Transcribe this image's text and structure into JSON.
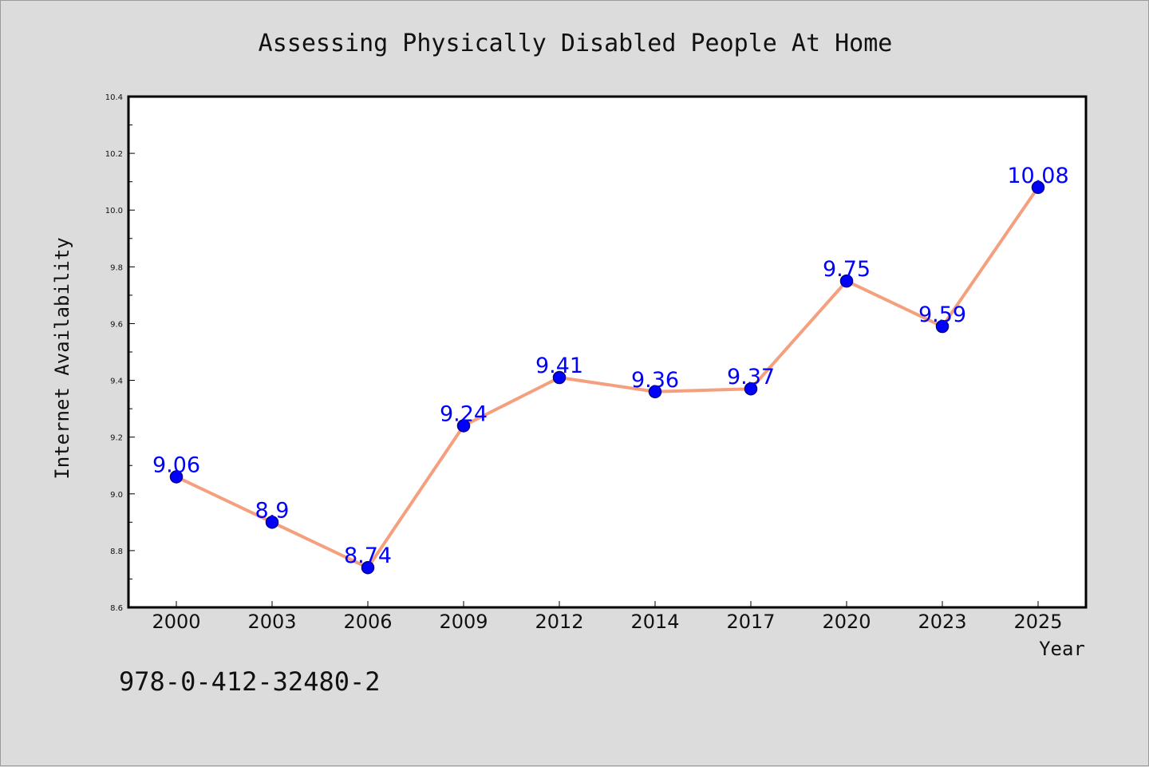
{
  "chart_data": {
    "type": "line",
    "title": "Assessing Physically Disabled People At Home",
    "xlabel": "Year",
    "ylabel": "Internet Availability",
    "categories": [
      "2000",
      "2003",
      "2006",
      "2009",
      "2012",
      "2014",
      "2017",
      "2020",
      "2023",
      "2025"
    ],
    "series": [
      {
        "values": [
          9.06,
          8.9,
          8.74,
          9.24,
          9.41,
          9.36,
          9.37,
          9.75,
          9.59,
          10.08
        ],
        "labels": [
          "9.06",
          "8.9",
          "8.74",
          "9.24",
          "9.41",
          "9.36",
          "9.37",
          "9.75",
          "9.59",
          "10.08"
        ]
      }
    ],
    "ylim": [
      8.6,
      10.4
    ],
    "yticks": [
      "8.6",
      "8.8",
      "9.0",
      "9.2",
      "9.4",
      "9.6",
      "9.8",
      "10.0",
      "10.2",
      "10.4"
    ],
    "grid": false,
    "legend": "none",
    "colors": {
      "line": "#f4a07e",
      "marker_fill": "#0000ff",
      "marker_edge": "#00008b",
      "data_label": "#0000ff",
      "background": "#dcdcdc",
      "plot_background": "#ffffff"
    }
  },
  "footer": {
    "isbn": "978-0-412-32480-2"
  }
}
